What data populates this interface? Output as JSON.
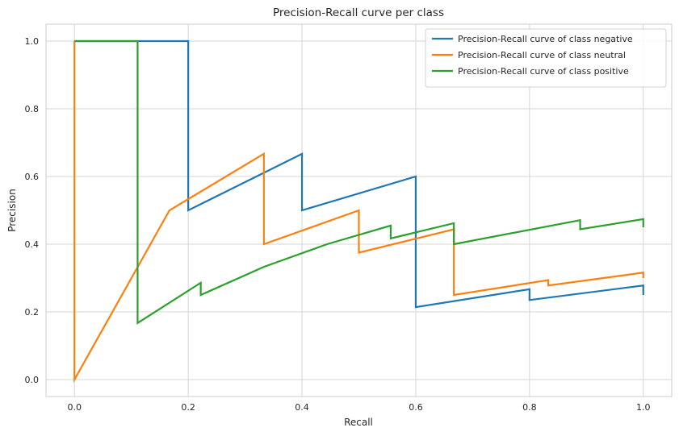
{
  "chart_data": {
    "type": "line",
    "title": "Precision-Recall curve per class",
    "xlabel": "Recall",
    "ylabel": "Precision",
    "xlim": [
      -0.05,
      1.05
    ],
    "ylim": [
      -0.05,
      1.05
    ],
    "xticks": [
      0.0,
      0.2,
      0.4,
      0.6,
      0.8,
      1.0
    ],
    "xtick_labels": [
      "0.0",
      "0.2",
      "0.4",
      "0.6",
      "0.8",
      "1.0"
    ],
    "yticks": [
      0.0,
      0.2,
      0.4,
      0.6,
      0.8,
      1.0
    ],
    "ytick_labels": [
      "0.0",
      "0.2",
      "0.4",
      "0.6",
      "0.8",
      "1.0"
    ],
    "grid": true,
    "legend_position": "top-right",
    "series": [
      {
        "name": "Precision-Recall curve of class negative",
        "color": "#1f77b4",
        "x": [
          0.0,
          0.2,
          0.2,
          0.4,
          0.4,
          0.6,
          0.6,
          0.8,
          0.8,
          1.0,
          1.0
        ],
        "y": [
          1.0,
          1.0,
          0.5,
          0.667,
          0.5,
          0.6,
          0.214,
          0.267,
          0.235,
          0.278,
          0.25
        ]
      },
      {
        "name": "Precision-Recall curve of class neutral",
        "color": "#ff7f0e",
        "x": [
          0.0,
          0.0,
          0.0,
          0.167,
          0.333,
          0.333,
          0.5,
          0.5,
          0.667,
          0.667,
          0.833,
          0.833,
          1.0,
          1.0
        ],
        "y": [
          1.0,
          0.0,
          0.0,
          0.5,
          0.667,
          0.4,
          0.5,
          0.375,
          0.444,
          0.25,
          0.294,
          0.278,
          0.316,
          0.3
        ]
      },
      {
        "name": "Precision-Recall curve of class positive",
        "color": "#2ca02c",
        "x": [
          0.0,
          0.111,
          0.111,
          0.222,
          0.222,
          0.333,
          0.444,
          0.556,
          0.556,
          0.667,
          0.667,
          0.889,
          0.889,
          1.0,
          1.0
        ],
        "y": [
          1.0,
          1.0,
          0.167,
          0.286,
          0.25,
          0.333,
          0.4,
          0.455,
          0.417,
          0.462,
          0.4,
          0.471,
          0.444,
          0.474,
          0.45
        ]
      }
    ]
  }
}
